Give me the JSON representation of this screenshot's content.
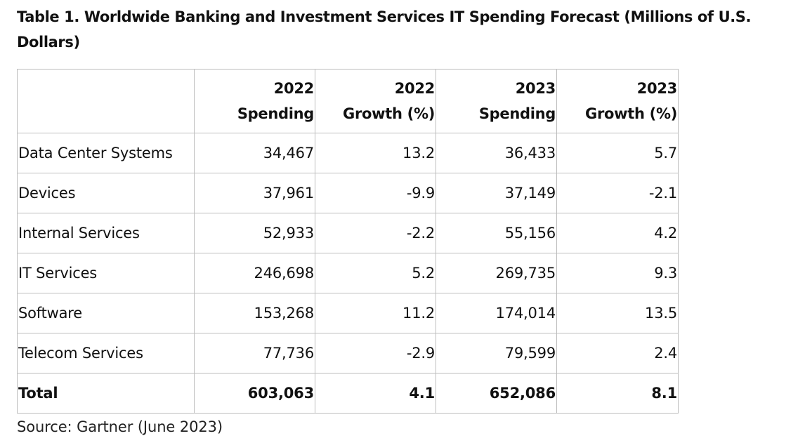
{
  "title": "Table 1. Worldwide Banking and Investment Services IT Spending Forecast (Millions of U.S. Dollars)",
  "chart_data": {
    "type": "table",
    "title": "Table 1. Worldwide Banking and Investment Services IT Spending Forecast (Millions of U.S. Dollars)",
    "columns": [
      {
        "line1": "",
        "line2": ""
      },
      {
        "line1": "2022",
        "line2": "Spending"
      },
      {
        "line1": "2022",
        "line2": "Growth (%)"
      },
      {
        "line1": "2023",
        "line2": "Spending"
      },
      {
        "line1": "2023",
        "line2": "Growth (%)"
      }
    ],
    "rows": [
      {
        "label": "Data Center Systems",
        "spending_2022": "34,467",
        "growth_2022": "13.2",
        "spending_2023": "36,433",
        "growth_2023": "5.7"
      },
      {
        "label": "Devices",
        "spending_2022": "37,961",
        "growth_2022": "-9.9",
        "spending_2023": "37,149",
        "growth_2023": "-2.1"
      },
      {
        "label": "Internal Services",
        "spending_2022": "52,933",
        "growth_2022": "-2.2",
        "spending_2023": "55,156",
        "growth_2023": "4.2"
      },
      {
        "label": "IT Services",
        "spending_2022": "246,698",
        "growth_2022": "5.2",
        "spending_2023": "269,735",
        "growth_2023": "9.3"
      },
      {
        "label": "Software",
        "spending_2022": "153,268",
        "growth_2022": "11.2",
        "spending_2023": "174,014",
        "growth_2023": "13.5"
      },
      {
        "label": "Telecom Services",
        "spending_2022": "77,736",
        "growth_2022": "-2.9",
        "spending_2023": "79,599",
        "growth_2023": "2.4"
      },
      {
        "label": "Total",
        "spending_2022": "603,063",
        "growth_2022": "4.1",
        "spending_2023": "652,086",
        "growth_2023": "8.1"
      }
    ],
    "source": "Source: Gartner (June 2023)"
  }
}
